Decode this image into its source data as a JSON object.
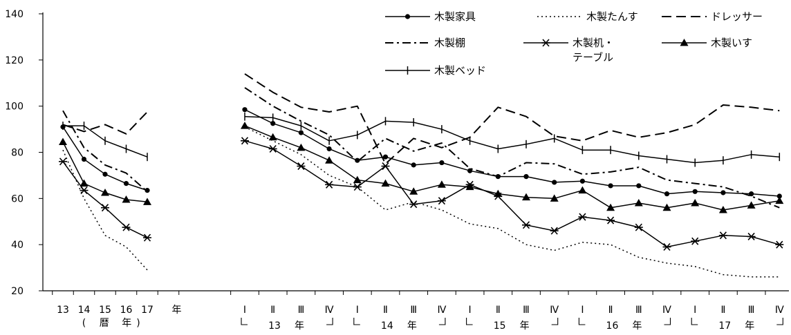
{
  "chart_data": {
    "type": "line",
    "ylim": [
      20,
      140
    ],
    "yticks": [
      "20",
      "40",
      "60",
      "80",
      "100",
      "120",
      "140"
    ],
    "annual_x": [
      "13",
      "14",
      "15",
      "16",
      "17"
    ],
    "annual_unit": "年",
    "annual_caption": [
      "(",
      "暦",
      "年",
      ")"
    ],
    "quarter_x": [
      "Ⅰ",
      "Ⅱ",
      "Ⅲ",
      "Ⅳ",
      "Ⅰ",
      "Ⅱ",
      "Ⅲ",
      "Ⅳ",
      "Ⅰ",
      "Ⅱ",
      "Ⅲ",
      "Ⅳ",
      "Ⅰ",
      "Ⅱ",
      "Ⅲ",
      "Ⅳ",
      "Ⅰ",
      "Ⅱ",
      "Ⅲ",
      "Ⅳ"
    ],
    "quarter_groups": [
      {
        "year": "13",
        "unit": "年"
      },
      {
        "year": "14",
        "unit": "年"
      },
      {
        "year": "15",
        "unit": "年"
      },
      {
        "year": "16",
        "unit": "年"
      },
      {
        "year": "17",
        "unit": "年"
      }
    ],
    "legend_position": "top-right",
    "series": [
      {
        "name": "木製家具",
        "style": "solid-circle",
        "annual": [
          91,
          77,
          70.5,
          66.5,
          63.5
        ],
        "quarterly": [
          98.5,
          92.5,
          88.5,
          81.5,
          76.5,
          78,
          74.5,
          75.5,
          72,
          69.5,
          69.5,
          67,
          67.5,
          65.5,
          65.5,
          62,
          63,
          62.5,
          62,
          61
        ]
      },
      {
        "name": "木製たんす",
        "style": "dotted",
        "annual": [
          81,
          60,
          44,
          39,
          29
        ],
        "quarterly": [
          91,
          85,
          79,
          70,
          65,
          55,
          58.5,
          55,
          49,
          47,
          40,
          37.5,
          41,
          40,
          34.5,
          32,
          30.5,
          27,
          26,
          26
        ]
      },
      {
        "name": "ドレッサー",
        "style": "dashed",
        "annual": [
          92,
          89,
          92,
          88,
          97.5
        ],
        "quarterly": [
          114,
          106,
          99.5,
          97.5,
          100,
          75,
          86,
          82,
          86.5,
          99.5,
          95.5,
          87,
          85,
          89.5,
          86.5,
          88.5,
          92,
          100.5,
          99.5,
          98
        ]
      },
      {
        "name": "木製棚",
        "style": "dash-dot",
        "annual": [
          98,
          82,
          74.5,
          71,
          63
        ],
        "quarterly": [
          108,
          100,
          93.5,
          87.5,
          76,
          86,
          80.5,
          84,
          73,
          69.5,
          75.5,
          75,
          70.5,
          71.5,
          73.5,
          68,
          66.5,
          65,
          61,
          56
        ]
      },
      {
        "name": "木製机・テーブル",
        "style": "solid-asterisk",
        "annual": [
          76,
          63.5,
          56,
          47.5,
          43
        ],
        "quarterly": [
          85,
          81.5,
          74,
          66,
          65,
          74,
          57.5,
          59,
          66,
          61,
          48.5,
          46,
          52,
          50.5,
          47.5,
          39,
          41.5,
          44,
          43.5,
          40
        ]
      },
      {
        "name": "木製いす",
        "style": "solid-triangle",
        "annual": [
          84.5,
          66.5,
          62.5,
          59.5,
          58.5
        ],
        "quarterly": [
          91.5,
          86.5,
          82,
          76.5,
          68,
          66.5,
          63,
          66,
          65,
          62,
          60.5,
          60,
          63.5,
          56,
          58,
          56,
          58,
          55,
          57,
          59
        ]
      },
      {
        "name": "木製ベッド",
        "style": "solid-plus",
        "annual": [
          91.5,
          91.5,
          85,
          81.5,
          78
        ],
        "quarterly": [
          95.5,
          95,
          91.5,
          85,
          87.5,
          93.5,
          93,
          90,
          85,
          81.5,
          83.5,
          86,
          81,
          81,
          78.5,
          77,
          75.5,
          76.5,
          79,
          78
        ]
      }
    ]
  }
}
